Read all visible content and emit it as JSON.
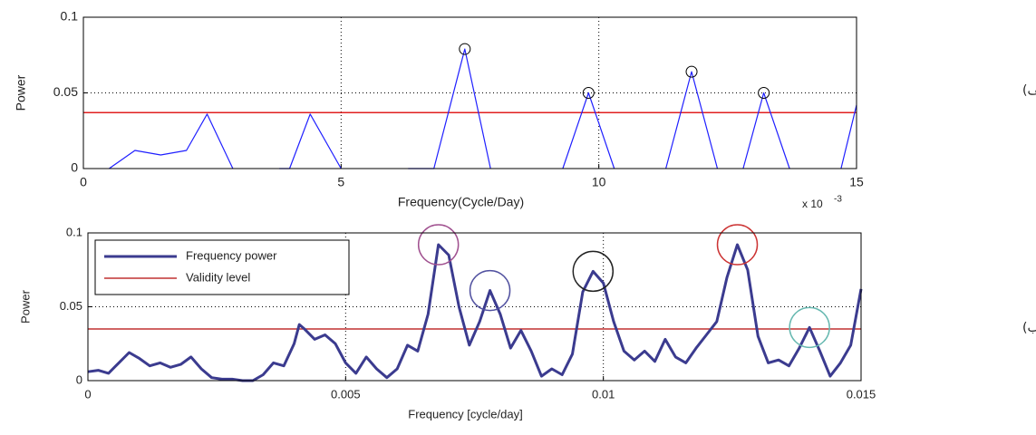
{
  "chart_data": [
    {
      "type": "line",
      "label": "(الف)",
      "x_label": "Frequency(Cycle/Day)",
      "y_label": "Power",
      "x_multiplier": "x 10",
      "x_multiplier_exponent": "-3",
      "xlim": [
        0,
        15
      ],
      "xticks": [
        0,
        5,
        10,
        15
      ],
      "ylim": [
        0,
        0.1
      ],
      "yticks": [
        0,
        0.05,
        0.1
      ],
      "grid": true,
      "series": [
        {
          "color": "#1f1fff",
          "x": [
            0.5,
            1,
            1.5,
            2,
            2.4,
            2.9,
            null,
            3.8,
            4.0,
            4.4,
            5.0,
            null,
            6.3,
            6.8,
            7.4,
            7.9,
            null,
            9.3,
            9.8,
            10.3,
            null,
            11.3,
            11.8,
            12.3,
            null,
            12.8,
            13.2,
            13.7,
            null,
            14.7,
            15
          ],
          "values": [
            0,
            0.012,
            0.009,
            0.012,
            0.036,
            0,
            null,
            0,
            0,
            0.036,
            0,
            null,
            0,
            0,
            0.079,
            0,
            null,
            0,
            0.05,
            0,
            null,
            0,
            0.064,
            0,
            null,
            0,
            0.05,
            0,
            null,
            0,
            0.042
          ]
        }
      ],
      "markers": {
        "color": "#000000",
        "x": [
          7.4,
          9.8,
          11.8,
          13.2
        ],
        "values": [
          0.079,
          0.05,
          0.064,
          0.05
        ]
      },
      "reference_lines": [
        {
          "value": 0.037,
          "color": "#e02020"
        }
      ]
    },
    {
      "type": "line",
      "label": "(ب)",
      "x_label": "Frequency [cycle/day]",
      "y_label": "Power",
      "xlim": [
        0,
        0.015
      ],
      "xticks": [
        0,
        0.005,
        0.01,
        0.015
      ],
      "ylim": [
        0,
        0.1
      ],
      "yticks": [
        0,
        0.05,
        0.1
      ],
      "grid": true,
      "series": [
        {
          "name": "Frequency power",
          "color": "#3b3b8f",
          "x": [
            0,
            0.0002,
            0.0004,
            0.0006,
            0.0008,
            0.001,
            0.0012,
            0.0014,
            0.0016,
            0.0018,
            0.002,
            0.0022,
            0.0024,
            0.0026,
            0.0028,
            0.003,
            0.0032,
            0.0034,
            0.0036,
            0.0038,
            0.004,
            0.0041,
            0.0042,
            0.0044,
            0.0046,
            0.0048,
            0.005,
            0.0052,
            0.0054,
            0.0056,
            0.0058,
            0.006,
            0.0062,
            0.0064,
            0.0066,
            0.0068,
            0.007,
            0.0072,
            0.0074,
            0.0076,
            0.0078,
            0.008,
            0.0082,
            0.0084,
            0.0086,
            0.0088,
            0.009,
            0.0092,
            0.0094,
            0.0096,
            0.0098,
            0.01,
            0.0102,
            0.0104,
            0.0106,
            0.0108,
            0.011,
            0.0112,
            0.0114,
            0.0116,
            0.0118,
            0.012,
            0.0122,
            0.0124,
            0.0126,
            0.0128,
            0.013,
            0.0132,
            0.0134,
            0.0136,
            0.0138,
            0.014,
            0.0142,
            0.0144,
            0.0146,
            0.0148,
            0.015
          ],
          "values": [
            0.006,
            0.007,
            0.005,
            0.012,
            0.019,
            0.015,
            0.01,
            0.012,
            0.009,
            0.011,
            0.016,
            0.008,
            0.002,
            0.001,
            0.001,
            0,
            0,
            0.004,
            0.012,
            0.01,
            0.025,
            0.038,
            0.035,
            0.028,
            0.031,
            0.025,
            0.012,
            0.005,
            0.016,
            0.008,
            0.002,
            0.008,
            0.024,
            0.02,
            0.045,
            0.092,
            0.085,
            0.05,
            0.024,
            0.04,
            0.061,
            0.045,
            0.022,
            0.034,
            0.02,
            0.003,
            0.008,
            0.004,
            0.018,
            0.06,
            0.074,
            0.066,
            0.04,
            0.02,
            0.014,
            0.02,
            0.013,
            0.028,
            0.016,
            0.012,
            0.022,
            0.031,
            0.04,
            0.07,
            0.092,
            0.075,
            0.03,
            0.012,
            0.014,
            0.01,
            0.022,
            0.036,
            0.02,
            0.003,
            0.012,
            0.024,
            0.062
          ]
        }
      ],
      "highlights": {
        "x": [
          0.0068,
          0.0078,
          0.0098,
          0.0126,
          0.014
        ],
        "values": [
          0.092,
          0.061,
          0.074,
          0.092,
          0.036
        ],
        "colors": [
          "#a0508f",
          "#50509f",
          "#222222",
          "#cc3333",
          "#66b8b0"
        ]
      },
      "reference_lines": [
        {
          "name": "Validity level",
          "value": 0.035,
          "color": "#c03030"
        }
      ]
    }
  ]
}
